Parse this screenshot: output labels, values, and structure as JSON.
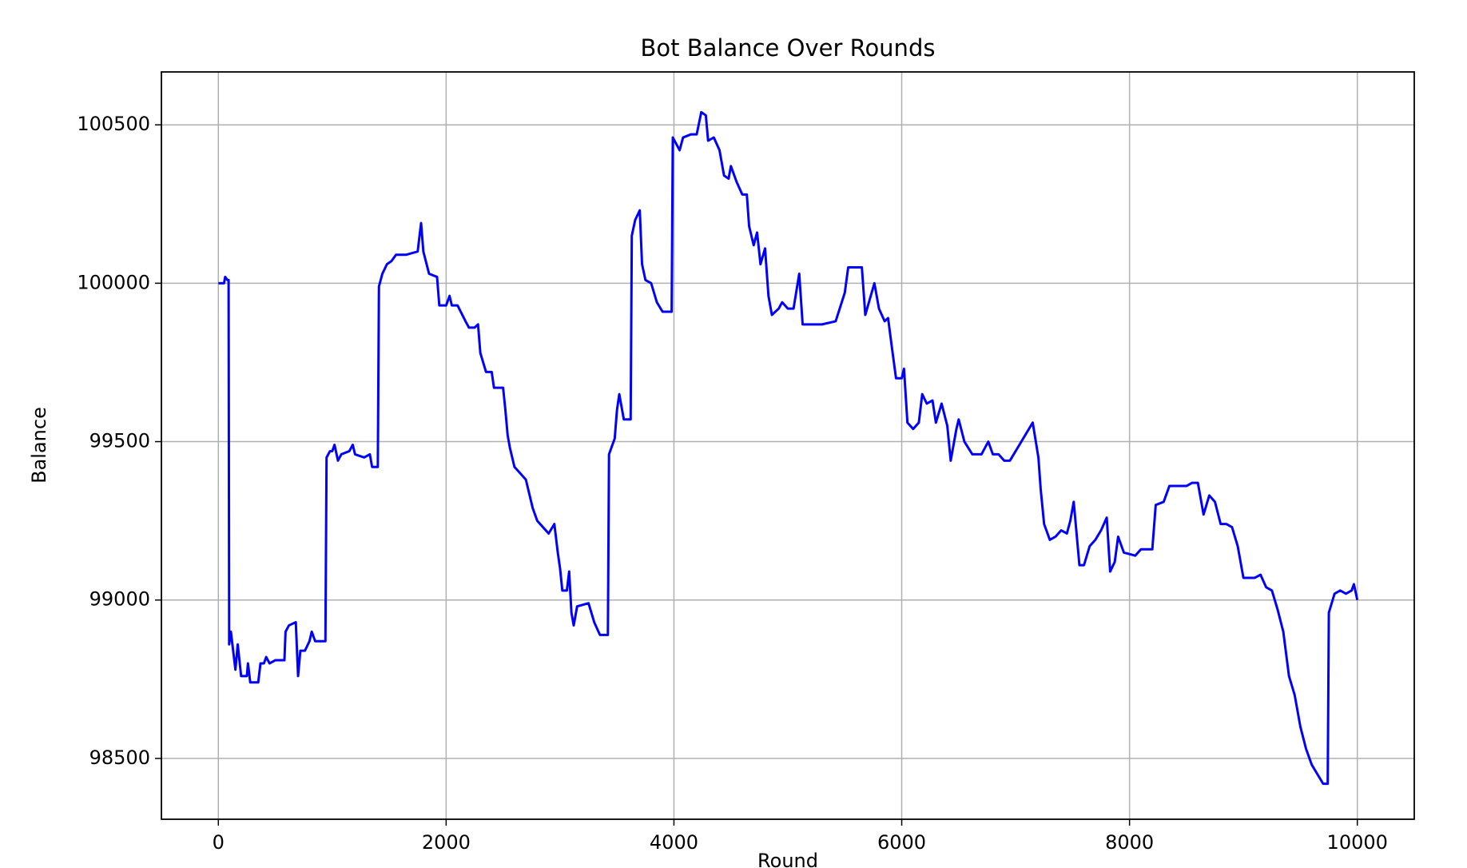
{
  "chart_data": {
    "type": "line",
    "title": "Bot Balance Over Rounds",
    "xlabel": "Round",
    "ylabel": "Balance",
    "color": "#0000ff",
    "grid": true,
    "xlim": [
      -500,
      10500
    ],
    "ylim": [
      98308,
      100667
    ],
    "xticks": [
      0,
      2000,
      4000,
      6000,
      8000,
      10000
    ],
    "yticks": [
      98500,
      99000,
      99500,
      100000,
      100500
    ],
    "x": [
      0,
      50,
      60,
      80,
      90,
      95,
      110,
      130,
      150,
      170,
      200,
      250,
      260,
      280,
      350,
      370,
      400,
      420,
      450,
      500,
      580,
      590,
      620,
      680,
      700,
      720,
      760,
      800,
      820,
      850,
      940,
      950,
      980,
      1000,
      1020,
      1050,
      1080,
      1150,
      1180,
      1200,
      1280,
      1330,
      1350,
      1400,
      1410,
      1440,
      1480,
      1520,
      1560,
      1600,
      1650,
      1750,
      1780,
      1800,
      1850,
      1920,
      1940,
      2000,
      2030,
      2050,
      2100,
      2170,
      2200,
      2250,
      2280,
      2300,
      2350,
      2400,
      2420,
      2500,
      2520,
      2540,
      2560,
      2600,
      2650,
      2700,
      2760,
      2800,
      2850,
      2900,
      2950,
      2980,
      3000,
      3020,
      3060,
      3080,
      3100,
      3120,
      3150,
      3250,
      3300,
      3350,
      3420,
      3430,
      3480,
      3500,
      3520,
      3560,
      3620,
      3630,
      3660,
      3700,
      3720,
      3750,
      3800,
      3850,
      3900,
      3980,
      3990,
      4050,
      4080,
      4150,
      4200,
      4240,
      4280,
      4300,
      4350,
      4400,
      4440,
      4480,
      4500,
      4550,
      4600,
      4640,
      4660,
      4700,
      4730,
      4760,
      4800,
      4830,
      4860,
      4920,
      4950,
      5000,
      5050,
      5100,
      5130,
      5200,
      5300,
      5420,
      5500,
      5530,
      5650,
      5680,
      5720,
      5760,
      5800,
      5850,
      5880,
      5920,
      5950,
      6000,
      6020,
      6050,
      6100,
      6150,
      6180,
      6220,
      6270,
      6300,
      6350,
      6400,
      6430,
      6480,
      6500,
      6550,
      6620,
      6700,
      6760,
      6800,
      6850,
      6900,
      6950,
      7000,
      7100,
      7150,
      7200,
      7220,
      7250,
      7300,
      7350,
      7400,
      7450,
      7480,
      7510,
      7540,
      7560,
      7600,
      7650,
      7700,
      7750,
      7800,
      7830,
      7870,
      7900,
      7950,
      8050,
      8100,
      8200,
      8230,
      8300,
      8350,
      8450,
      8500,
      8550,
      8600,
      8650,
      8700,
      8750,
      8800,
      8850,
      8900,
      8950,
      9000,
      9100,
      9150,
      9200,
      9250,
      9300,
      9350,
      9400,
      9450,
      9500,
      9550,
      9600,
      9650,
      9700,
      9740,
      9750,
      9800,
      9850,
      9900,
      9950,
      9970,
      10000
    ],
    "values": [
      100000,
      100000,
      100020,
      100010,
      100010,
      98860,
      98900,
      98840,
      98780,
      98860,
      98760,
      98760,
      98800,
      98740,
      98740,
      98800,
      98800,
      98820,
      98800,
      98810,
      98810,
      98900,
      98920,
      98930,
      98760,
      98840,
      98840,
      98870,
      98900,
      98870,
      98870,
      99450,
      99470,
      99470,
      99490,
      99440,
      99460,
      99470,
      99490,
      99460,
      99450,
      99460,
      99420,
      99420,
      99990,
      100030,
      100060,
      100070,
      100090,
      100090,
      100090,
      100100,
      100190,
      100100,
      100030,
      100020,
      99930,
      99930,
      99960,
      99930,
      99930,
      99880,
      99860,
      99860,
      99870,
      99780,
      99720,
      99720,
      99670,
      99670,
      99600,
      99520,
      99480,
      99420,
      99400,
      99380,
      99290,
      99250,
      99230,
      99210,
      99240,
      99150,
      99100,
      99030,
      99030,
      99090,
      98960,
      98920,
      98980,
      98990,
      98930,
      98890,
      98890,
      99460,
      99510,
      99600,
      99650,
      99570,
      99570,
      100150,
      100200,
      100230,
      100060,
      100010,
      100000,
      99940,
      99910,
      99910,
      100460,
      100420,
      100460,
      100470,
      100470,
      100540,
      100530,
      100450,
      100460,
      100420,
      100340,
      100330,
      100370,
      100320,
      100280,
      100280,
      100180,
      100120,
      100160,
      100060,
      100110,
      99960,
      99900,
      99920,
      99940,
      99920,
      99920,
      100030,
      99870,
      99870,
      99870,
      99880,
      99970,
      100050,
      100050,
      99900,
      99950,
      100000,
      99920,
      99880,
      99890,
      99780,
      99700,
      99700,
      99730,
      99560,
      99540,
      99560,
      99650,
      99620,
      99630,
      99560,
      99620,
      99550,
      99440,
      99540,
      99570,
      99500,
      99460,
      99460,
      99500,
      99460,
      99460,
      99440,
      99440,
      99470,
      99530,
      99560,
      99450,
      99350,
      99240,
      99190,
      99200,
      99220,
      99210,
      99250,
      99310,
      99190,
      99110,
      99110,
      99170,
      99190,
      99220,
      99260,
      99090,
      99120,
      99200,
      99150,
      99140,
      99160,
      99160,
      99300,
      99310,
      99360,
      99360,
      99360,
      99370,
      99370,
      99270,
      99330,
      99310,
      99240,
      99240,
      99230,
      99170,
      99070,
      99070,
      99080,
      99040,
      99030,
      98970,
      98900,
      98760,
      98700,
      98600,
      98530,
      98480,
      98450,
      98420,
      98420,
      98960,
      99020,
      99030,
      99020,
      99030,
      99050,
      99000
    ]
  }
}
